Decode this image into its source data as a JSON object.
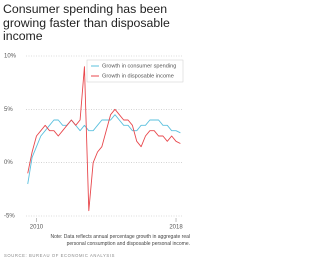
{
  "chart_data": {
    "type": "line",
    "title": "Consumer spending has been growing faster than disposable income",
    "note": "Note: Data reflects annual percentage growth in aggregate real personal consumption and disposable personal income.",
    "source": "SOURCE: BUREAU OF ECONOMIC ANALYSIS",
    "x": [
      2009.5,
      2009.75,
      2010,
      2010.25,
      2010.5,
      2010.75,
      2011,
      2011.25,
      2011.5,
      2011.75,
      2012,
      2012.25,
      2012.5,
      2012.75,
      2013,
      2013.25,
      2013.5,
      2013.75,
      2014,
      2014.25,
      2014.5,
      2014.75,
      2015,
      2015.25,
      2015.5,
      2015.75,
      2016,
      2016.25,
      2016.5,
      2016.75,
      2017,
      2017.25,
      2017.5,
      2017.75,
      2018,
      2018.25
    ],
    "series": [
      {
        "name": "Growth in consumer spending",
        "color": "#5bc0de",
        "values": [
          -2,
          0.5,
          1.5,
          2.5,
          3,
          3.5,
          4,
          4,
          3.5,
          3.5,
          4,
          3.5,
          3,
          3.5,
          3,
          3,
          3.5,
          4,
          4,
          4,
          4.5,
          4,
          3.5,
          3.5,
          3,
          3,
          3.5,
          3.5,
          4,
          4,
          4,
          3.5,
          3.5,
          3,
          3,
          2.8
        ]
      },
      {
        "name": "Growth in disposable income",
        "color": "#e8474c",
        "values": [
          -1,
          1,
          2.5,
          3,
          3.5,
          3,
          3,
          2.5,
          3,
          3.5,
          4,
          3.5,
          4,
          9,
          -4.5,
          0,
          1,
          1.5,
          3,
          4.5,
          5,
          4.5,
          4,
          4,
          3.5,
          2,
          1.5,
          2.5,
          3,
          3,
          2.5,
          2.5,
          2,
          2.5,
          2,
          1.8
        ]
      }
    ],
    "xlim": [
      2009.4,
      2018.4
    ],
    "xticks": [
      2010,
      2018
    ],
    "ylim": [
      -5,
      10
    ],
    "yticks": [
      {
        "value": -5,
        "label": "-5%"
      },
      {
        "value": 0,
        "label": "0%"
      },
      {
        "value": 5,
        "label": "5%"
      },
      {
        "value": 10,
        "label": "10%"
      }
    ],
    "grid": true,
    "legend": "upper right"
  }
}
